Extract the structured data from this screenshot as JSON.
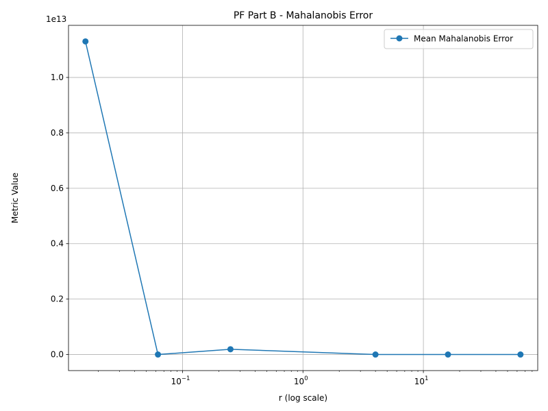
{
  "chart_data": {
    "type": "line",
    "title": "PF Part B - Mahalanobis Error",
    "xlabel": "r (log scale)",
    "ylabel": "Metric Value",
    "x_scale": "log",
    "y_offset_text": "1e13",
    "y_multiplier": 10000000000000.0,
    "xlim": [
      0.0113,
      89
    ],
    "ylim": [
      -580000000000.0,
      11880000000000.0
    ],
    "grid": true,
    "legend_position": "top-right",
    "colors": {
      "line": "#1f77b4",
      "grid": "#b0b0b0"
    },
    "x_ticks": [
      {
        "value": 0.1,
        "base": "10",
        "exp": "−1"
      },
      {
        "value": 1,
        "base": "10",
        "exp": "0"
      },
      {
        "value": 10,
        "base": "10",
        "exp": "1"
      }
    ],
    "y_ticks": [
      {
        "value": 0.0,
        "label": "0.0"
      },
      {
        "value": 2000000000000.0,
        "label": "0.2"
      },
      {
        "value": 4000000000000.0,
        "label": "0.4"
      },
      {
        "value": 6000000000000.0,
        "label": "0.6"
      },
      {
        "value": 8000000000000.0,
        "label": "0.8"
      },
      {
        "value": 10000000000000.0,
        "label": "1.0"
      }
    ],
    "series": [
      {
        "name": "Mean Mahalanobis Error",
        "x": [
          0.015625,
          0.0625,
          0.25,
          4,
          16,
          64
        ],
        "values": [
          11300000000000.0,
          0.0,
          190000000000.0,
          0.0,
          0.0,
          0.0
        ]
      }
    ]
  }
}
